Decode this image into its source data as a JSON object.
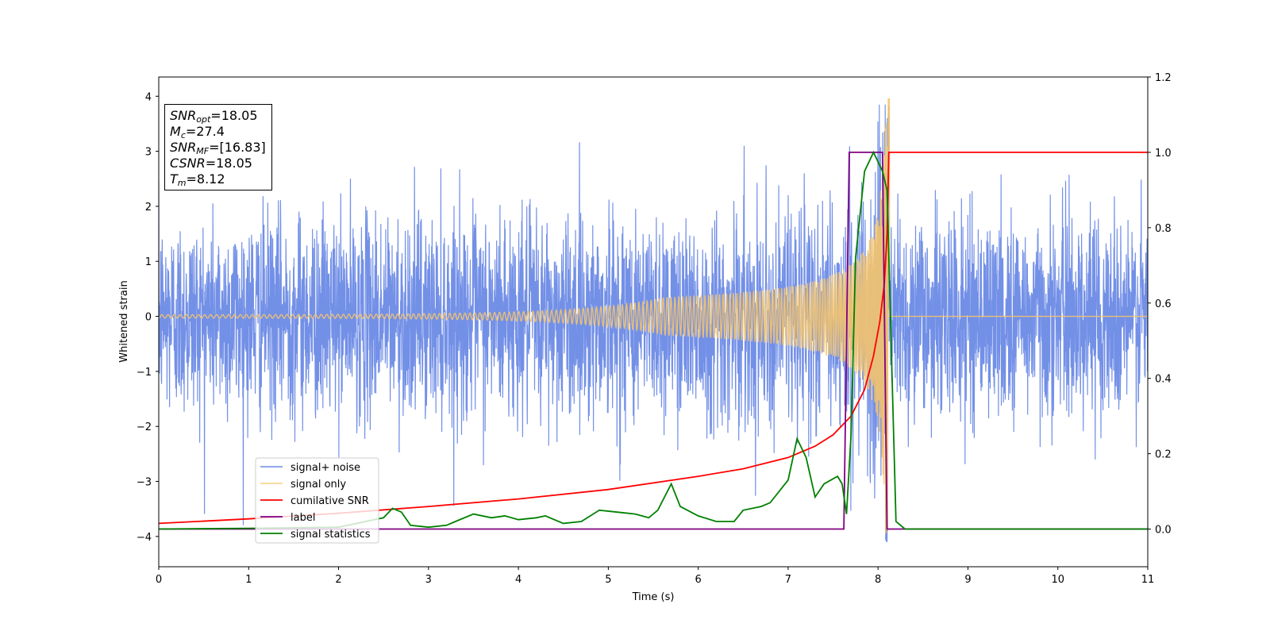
{
  "chart_data": {
    "type": "line",
    "xlabel": "Time (s)",
    "ylabel": "Whitened strain",
    "xlim": [
      0,
      11
    ],
    "ylim": [
      -4.55,
      4.35
    ],
    "y2lim": [
      -0.1,
      1.2
    ],
    "xticks": [
      "0",
      "1",
      "2",
      "3",
      "4",
      "5",
      "6",
      "7",
      "8",
      "9",
      "10",
      "11"
    ],
    "yticks": [
      "4",
      "3",
      "2",
      "1",
      "0",
      "−1",
      "−2",
      "−3",
      "−4"
    ],
    "y2ticks": [
      "1.2",
      "1.0",
      "0.8",
      "0.6",
      "0.4",
      "0.2",
      "0.0"
    ],
    "grid": false,
    "legend_position": "lower-left",
    "merger_time": 8.12,
    "series": [
      {
        "name": "signal+ noise",
        "axis": "left",
        "color": "#6b8ae6",
        "description_values": "white noise with amplitude about ±2.2 and spikes to ±3.8; peak 3.82 at t=8.12",
        "noise_rms": 1.15,
        "peak_value": 3.82
      },
      {
        "name": "signal only",
        "axis": "left",
        "color": "#f5c46b",
        "chirp": {
          "start_amplitude": 0.03,
          "peak_amplitude": 3.95,
          "end_time": 8.12,
          "post_merger": 0
        }
      },
      {
        "name": "cumilative SNR",
        "axis": "right",
        "color": "#ff0000",
        "points": [
          [
            0,
            0.015
          ],
          [
            1,
            0.027
          ],
          [
            2,
            0.042
          ],
          [
            3,
            0.06
          ],
          [
            4,
            0.08
          ],
          [
            5,
            0.105
          ],
          [
            6,
            0.14
          ],
          [
            6.5,
            0.16
          ],
          [
            7,
            0.19
          ],
          [
            7.3,
            0.22
          ],
          [
            7.5,
            0.25
          ],
          [
            7.7,
            0.3
          ],
          [
            7.85,
            0.37
          ],
          [
            7.95,
            0.46
          ],
          [
            8.02,
            0.55
          ],
          [
            8.07,
            0.65
          ],
          [
            8.1,
            0.78
          ],
          [
            8.12,
            1.0
          ],
          [
            11,
            1.0
          ]
        ]
      },
      {
        "name": "label",
        "axis": "right",
        "color": "#800080",
        "points": [
          [
            0,
            0
          ],
          [
            7.62,
            0
          ],
          [
            7.68,
            1.0
          ],
          [
            8.05,
            1.0
          ],
          [
            8.1,
            0.0
          ],
          [
            11,
            0
          ]
        ]
      },
      {
        "name": "signal statistics",
        "axis": "right",
        "color": "#008000",
        "points": [
          [
            0,
            0.0
          ],
          [
            1,
            0.002
          ],
          [
            2,
            0.005
          ],
          [
            2.3,
            0.02
          ],
          [
            2.5,
            0.03
          ],
          [
            2.6,
            0.055
          ],
          [
            2.7,
            0.045
          ],
          [
            2.8,
            0.01
          ],
          [
            3,
            0.005
          ],
          [
            3.2,
            0.01
          ],
          [
            3.3,
            0.02
          ],
          [
            3.5,
            0.04
          ],
          [
            3.7,
            0.03
          ],
          [
            3.85,
            0.035
          ],
          [
            4,
            0.025
          ],
          [
            4.2,
            0.03
          ],
          [
            4.3,
            0.035
          ],
          [
            4.5,
            0.015
          ],
          [
            4.7,
            0.02
          ],
          [
            4.9,
            0.05
          ],
          [
            5.1,
            0.045
          ],
          [
            5.3,
            0.04
          ],
          [
            5.45,
            0.03
          ],
          [
            5.55,
            0.05
          ],
          [
            5.7,
            0.12
          ],
          [
            5.8,
            0.06
          ],
          [
            6,
            0.035
          ],
          [
            6.2,
            0.02
          ],
          [
            6.4,
            0.02
          ],
          [
            6.5,
            0.05
          ],
          [
            6.7,
            0.06
          ],
          [
            6.8,
            0.07
          ],
          [
            7.0,
            0.13
          ],
          [
            7.1,
            0.24
          ],
          [
            7.2,
            0.19
          ],
          [
            7.3,
            0.085
          ],
          [
            7.4,
            0.12
          ],
          [
            7.55,
            0.14
          ],
          [
            7.6,
            0.12
          ],
          [
            7.65,
            0.04
          ],
          [
            7.7,
            0.25
          ],
          [
            7.75,
            0.72
          ],
          [
            7.85,
            0.95
          ],
          [
            7.95,
            1.0
          ],
          [
            8.05,
            0.95
          ],
          [
            8.1,
            0.9
          ],
          [
            8.2,
            0.02
          ],
          [
            8.3,
            0.0
          ],
          [
            11,
            0.0
          ]
        ]
      }
    ],
    "annotation": {
      "snr_opt": "=18.05",
      "mc": "=27.4",
      "snr_mf": "=[16.83]",
      "csnr": "=18.05",
      "tm": "=8.12"
    },
    "legend": [
      "signal+ noise",
      "signal only",
      "cumilative SNR",
      "label",
      "signal statistics"
    ]
  }
}
